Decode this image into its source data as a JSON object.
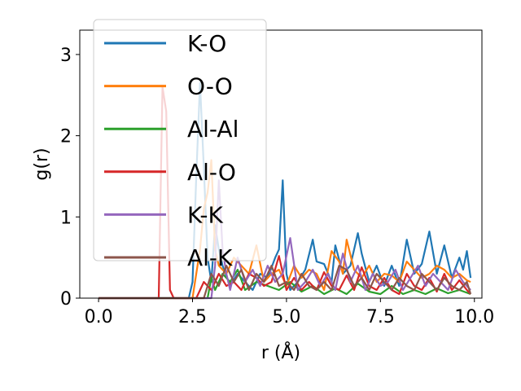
{
  "chart_data": {
    "type": "line",
    "title": "",
    "xlabel": "r (Å)",
    "ylabel": "g(r)",
    "xlim": [
      -0.5,
      10.2
    ],
    "ylim": [
      0,
      3.3
    ],
    "xticks": [
      0.0,
      2.5,
      5.0,
      7.5,
      10.0
    ],
    "xtick_labels": [
      "0.0",
      "2.5",
      "5.0",
      "7.5",
      "10.0"
    ],
    "yticks": [
      0,
      1,
      2,
      3
    ],
    "ytick_labels": [
      "0",
      "1",
      "2",
      "3"
    ],
    "grid": false,
    "legend_position": "top-left",
    "series": [
      {
        "name": "K-O",
        "color": "#1f77b4",
        "x": [
          0,
          2.4,
          2.5,
          2.6,
          2.7,
          2.8,
          2.9,
          3.0,
          3.1,
          3.2,
          3.3,
          3.5,
          3.7,
          3.9,
          4.1,
          4.3,
          4.5,
          4.7,
          4.8,
          4.9,
          5.0,
          5.1,
          5.3,
          5.5,
          5.7,
          5.8,
          6.0,
          6.2,
          6.3,
          6.5,
          6.7,
          6.9,
          7.0,
          7.2,
          7.4,
          7.6,
          7.8,
          8.0,
          8.2,
          8.4,
          8.6,
          8.8,
          9.0,
          9.2,
          9.4,
          9.6,
          9.7,
          9.8,
          9.9
        ],
        "y": [
          0,
          0,
          0.2,
          1.5,
          2.65,
          1.6,
          0.5,
          0.2,
          0.9,
          0.6,
          0.4,
          0.15,
          0.3,
          0.2,
          0.1,
          0.3,
          0.25,
          0.5,
          0.6,
          1.45,
          0.3,
          0.1,
          0.2,
          0.35,
          0.72,
          0.45,
          0.42,
          0.2,
          0.65,
          0.3,
          0.4,
          0.8,
          0.55,
          0.2,
          0.4,
          0.15,
          0.4,
          0.15,
          0.72,
          0.3,
          0.42,
          0.82,
          0.3,
          0.65,
          0.25,
          0.5,
          0.35,
          0.58,
          0.25
        ]
      },
      {
        "name": "O-O",
        "color": "#ff7f0e",
        "x": [
          0,
          2.5,
          2.6,
          2.7,
          2.8,
          2.9,
          3.0,
          3.1,
          3.2,
          3.4,
          3.6,
          3.8,
          4.0,
          4.2,
          4.4,
          4.6,
          4.8,
          5.0,
          5.2,
          5.4,
          5.6,
          5.8,
          6.0,
          6.2,
          6.4,
          6.5,
          6.6,
          6.8,
          7.0,
          7.2,
          7.4,
          7.6,
          7.8,
          8.0,
          8.2,
          8.4,
          8.6,
          8.8,
          9.0,
          9.2,
          9.4,
          9.6,
          9.8,
          9.9
        ],
        "y": [
          0,
          0,
          0.3,
          0.6,
          1.1,
          1.3,
          1.7,
          0.6,
          0.4,
          0.3,
          0.5,
          0.4,
          0.3,
          0.65,
          0.2,
          0.3,
          0.35,
          0.15,
          0.4,
          0.25,
          0.35,
          0.3,
          0.1,
          0.58,
          0.45,
          0.3,
          0.72,
          0.35,
          0.25,
          0.4,
          0.2,
          0.3,
          0.28,
          0.2,
          0.45,
          0.35,
          0.25,
          0.3,
          0.4,
          0.35,
          0.25,
          0.3,
          0.22,
          0.2
        ]
      },
      {
        "name": "Al-Al",
        "color": "#2ca02c",
        "x": [
          0,
          2.9,
          3.0,
          3.1,
          3.3,
          3.5,
          3.7,
          3.9,
          4.2,
          4.5,
          4.8,
          5.1,
          5.4,
          5.7,
          6.0,
          6.3,
          6.6,
          6.9,
          7.2,
          7.5,
          7.8,
          8.1,
          8.4,
          8.7,
          9.0,
          9.3,
          9.6,
          9.9
        ],
        "y": [
          0,
          0,
          0.25,
          0.1,
          0.3,
          0.2,
          0.35,
          0.1,
          0.2,
          0.15,
          0.1,
          0.2,
          0.08,
          0.15,
          0.05,
          0.12,
          0.05,
          0.18,
          0.08,
          0.05,
          0.15,
          0.05,
          0.1,
          0.05,
          0.12,
          0.06,
          0.1,
          0.05
        ]
      },
      {
        "name": "Al-O",
        "color": "#d62728",
        "x": [
          0,
          1.6,
          1.7,
          1.8,
          1.9,
          2.0,
          2.6,
          2.8,
          3.0,
          3.2,
          3.4,
          3.6,
          3.8,
          4.0,
          4.2,
          4.4,
          4.6,
          4.8,
          5.0,
          5.2,
          5.4,
          5.6,
          5.8,
          6.0,
          6.2,
          6.4,
          6.6,
          6.8,
          7.0,
          7.2,
          7.4,
          7.6,
          7.8,
          8.0,
          8.2,
          8.4,
          8.6,
          8.8,
          9.0,
          9.2,
          9.4,
          9.6,
          9.8,
          9.9
        ],
        "y": [
          0,
          0,
          2.6,
          2.3,
          0.1,
          0,
          0,
          0.2,
          0.1,
          0.3,
          0.15,
          0.2,
          0.1,
          0.3,
          0.25,
          0.15,
          0.2,
          0.52,
          0.1,
          0.25,
          0.1,
          0.2,
          0.1,
          0.32,
          0.15,
          0.1,
          0.28,
          0.1,
          0.38,
          0.15,
          0.1,
          0.25,
          0.1,
          0.05,
          0.3,
          0.15,
          0.1,
          0.25,
          0.08,
          0.3,
          0.1,
          0.22,
          0.1,
          0.05
        ]
      },
      {
        "name": "K-K",
        "color": "#9467bd",
        "x": [
          0,
          3.0,
          3.1,
          3.2,
          3.3,
          3.4,
          3.5,
          3.7,
          3.9,
          4.1,
          4.3,
          4.5,
          4.7,
          4.9,
          5.1,
          5.3,
          5.5,
          5.7,
          5.9,
          6.1,
          6.3,
          6.5,
          6.7,
          6.9,
          7.1,
          7.3,
          7.5,
          7.7,
          7.9,
          8.1,
          8.3,
          8.5,
          8.7,
          8.9,
          9.1,
          9.3,
          9.5,
          9.7,
          9.9
        ],
        "y": [
          0,
          0,
          0.4,
          1.45,
          0.6,
          0.3,
          0.1,
          0.5,
          0.2,
          0.35,
          0.15,
          0.4,
          0.2,
          0.3,
          0.74,
          0.1,
          0.2,
          0.35,
          0.15,
          0.3,
          0.1,
          0.55,
          0.2,
          0.4,
          0.1,
          0.3,
          0.15,
          0.2,
          0.35,
          0.1,
          0.25,
          0.4,
          0.15,
          0.3,
          0.2,
          0.1,
          0.35,
          0.2,
          0.1
        ]
      },
      {
        "name": "Al-K",
        "color": "#8c564b",
        "x": [
          0,
          2.8,
          3.0,
          3.2,
          3.4,
          3.6,
          3.8,
          4.0,
          4.2,
          4.4,
          4.6,
          4.8,
          5.0,
          5.2,
          5.4,
          5.6,
          5.8,
          6.0,
          6.2,
          6.4,
          6.6,
          6.8,
          7.0,
          7.2,
          7.4,
          7.6,
          7.8,
          8.0,
          8.2,
          8.4,
          8.6,
          8.8,
          9.0,
          9.2,
          9.4,
          9.6,
          9.8,
          9.9
        ],
        "y": [
          0,
          0,
          0.3,
          0.15,
          0.4,
          0.2,
          0.35,
          0.1,
          0.3,
          0.2,
          0.4,
          0.15,
          0.2,
          0.1,
          0.3,
          0.15,
          0.1,
          0.2,
          0.1,
          0.4,
          0.35,
          0.15,
          0.25,
          0.1,
          0.3,
          0.2,
          0.1,
          0.25,
          0.15,
          0.1,
          0.3,
          0.2,
          0.1,
          0.25,
          0.15,
          0.1,
          0.2,
          0.05
        ]
      }
    ]
  }
}
